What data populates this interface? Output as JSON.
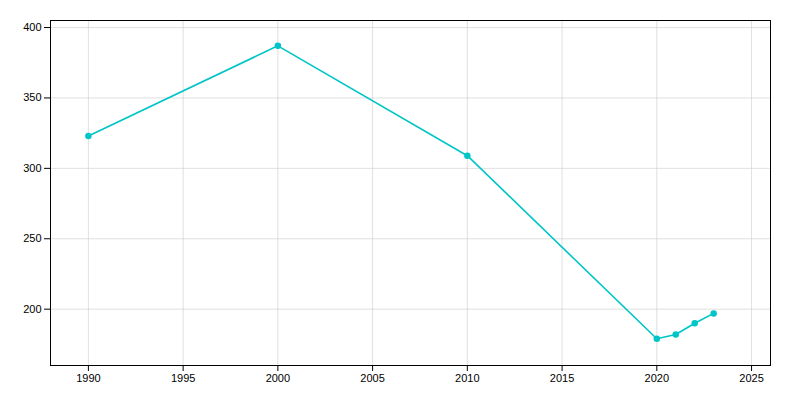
{
  "chart_data": {
    "type": "line",
    "x": [
      1990,
      2000,
      2010,
      2020,
      2021,
      2022,
      2023
    ],
    "values": [
      323,
      387,
      309,
      179,
      182,
      190,
      197
    ],
    "color": "#00C5C8",
    "marker": "circle",
    "xlim": [
      1988,
      2026
    ],
    "ylim": [
      160,
      405
    ],
    "xticks": [
      1990,
      1995,
      2000,
      2005,
      2010,
      2015,
      2020,
      2025
    ],
    "yticks": [
      200,
      250,
      300,
      350,
      400
    ],
    "grid": true
  }
}
